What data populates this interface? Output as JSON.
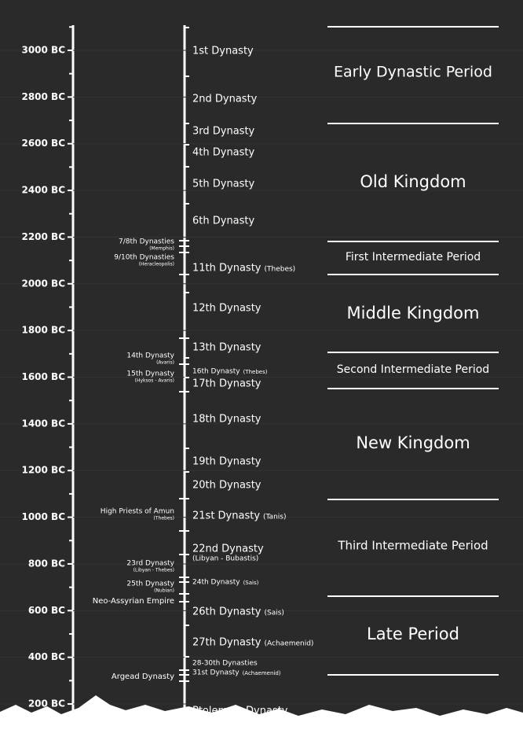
{
  "axis": {
    "labels": [
      "3000 BC",
      "2800 BC",
      "2600 BC",
      "2400 BC",
      "2200 BC",
      "2000 BC",
      "1800 BC",
      "1600 BC",
      "1400 BC",
      "1200 BC",
      "1000 BC",
      "800 BC",
      "600 BC",
      "400 BC",
      "200 BC"
    ]
  },
  "dynasties": [
    {
      "name": "1st Dynasty"
    },
    {
      "name": "2nd Dynasty"
    },
    {
      "name": "3rd Dynasty"
    },
    {
      "name": "4th Dynasty"
    },
    {
      "name": "5th Dynasty"
    },
    {
      "name": "6th Dynasty"
    },
    {
      "name": "11th Dynasty",
      "note": "(Thebes)"
    },
    {
      "name": "12th Dynasty"
    },
    {
      "name": "13th Dynasty"
    },
    {
      "name": "16th Dynasty",
      "note": "(Thebes)"
    },
    {
      "name": "17th Dynasty"
    },
    {
      "name": "18th Dynasty"
    },
    {
      "name": "19th Dynasty"
    },
    {
      "name": "20th Dynasty"
    },
    {
      "name": "21st Dynasty",
      "note": "(Tanis)"
    },
    {
      "name": "22nd Dynasty",
      "note": "(Libyan - Bubastis)"
    },
    {
      "name": "24th Dynasty",
      "note": "(Sais)"
    },
    {
      "name": "26th Dynasty",
      "note": "(Sais)"
    },
    {
      "name": "27th Dynasty",
      "note": "(Achaemenid)"
    },
    {
      "name": "28-30th Dynasties"
    },
    {
      "name": "31st Dynasty",
      "note": "(Achaemenid)"
    },
    {
      "name": "Ptolemaic Dynasty"
    }
  ],
  "side_dynasties": [
    {
      "name": "7/8th Dynasties",
      "note": "(Memphis)"
    },
    {
      "name": "9/10th Dynasties",
      "note": "(Heracleopolis)"
    },
    {
      "name": "14th Dynasty",
      "note": "(Avaris)"
    },
    {
      "name": "15th Dynasty",
      "note": "(Hyksos - Avaris)"
    },
    {
      "name": "High Priests of Amun",
      "note": "(Thebes)"
    },
    {
      "name": "23rd Dynasty",
      "note": "(Libyan - Thebes)"
    },
    {
      "name": "25th Dynasty",
      "note": "(Nubian)"
    },
    {
      "name": "Neo-Assyrian Empire"
    },
    {
      "name": "Argead Dynasty"
    }
  ],
  "periods": [
    "Early Dynastic Period",
    "Old Kingdom",
    "First Intermediate Period",
    "Middle Kingdom",
    "Second Intermediate Period",
    "New Kingdom",
    "Third Intermediate Period",
    "Late Period"
  ]
}
